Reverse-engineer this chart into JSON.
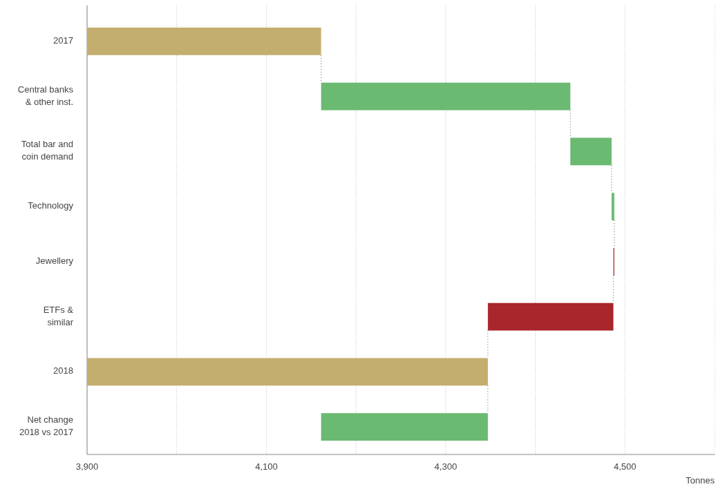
{
  "chart_data": {
    "type": "bar",
    "orientation": "horizontal",
    "xlabel": "Tonnes",
    "categories": [
      "2017",
      "Central banks & other inst.",
      "Total bar and coin demand",
      "Technology",
      "Jewellery",
      "ETFs & similar",
      "2018",
      "Net change 2018 vs 2017"
    ],
    "values": [
      4161,
      278,
      46,
      3,
      -1,
      -140,
      4347,
      186
    ],
    "base": [
      null,
      4161,
      4439,
      4485,
      4488,
      4487,
      null,
      4161
    ],
    "colors": [
      "#c4ae6f",
      "#6aba72",
      "#6aba72",
      "#6aba72",
      "#a8262c",
      "#a8262c",
      "#c4ae6f",
      "#6aba72"
    ],
    "xlim": [
      3900,
      4600
    ],
    "xticks": [
      {
        "value": 3900,
        "label": "3,900"
      },
      {
        "value": 4000,
        "label": null
      },
      {
        "value": 4100,
        "label": "4,100"
      },
      {
        "value": 4200,
        "label": null
      },
      {
        "value": 4300,
        "label": "4,300"
      },
      {
        "value": 4400,
        "label": null
      },
      {
        "value": 4500,
        "label": "4,500"
      }
    ],
    "grid": "x"
  }
}
